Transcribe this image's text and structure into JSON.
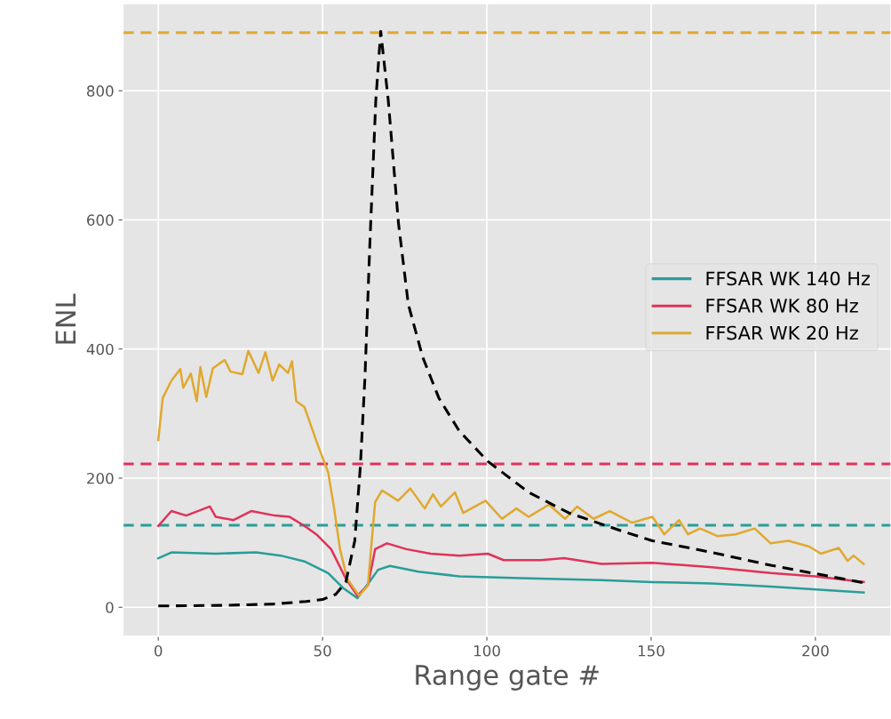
{
  "chart_data": {
    "type": "line",
    "xlabel": "Range gate #",
    "ylabel": "ENL",
    "xlim": [
      -10.75,
      223
    ],
    "ylim": [
      -45,
      935
    ],
    "xticks": [
      0,
      50,
      100,
      150,
      200
    ],
    "yticks": [
      0,
      200,
      400,
      600,
      800
    ],
    "grid": true,
    "legend": "right",
    "line_style": "solid",
    "marker": "none",
    "series": [
      {
        "name": "FFSAR WK 140 Hz",
        "color": "#2a9d98",
        "x": [
          0,
          4,
          17.5,
          29.8,
          37.3,
          44.5,
          51.7,
          56.2,
          60.6,
          64.2,
          66.9,
          70.5,
          79.2,
          91.6,
          110.2,
          135,
          150.4,
          168.5,
          186.4,
          214.7
        ],
        "values": [
          76,
          85,
          83,
          85,
          80,
          71,
          53,
          30,
          14,
          39,
          58,
          64,
          55,
          48,
          45,
          42,
          39,
          37,
          32,
          23
        ]
      },
      {
        "name": "FFSAR WK 80 Hz",
        "color": "#e0325a",
        "x": [
          0,
          4,
          8.5,
          15.7,
          17.5,
          22.9,
          28.3,
          35.5,
          40,
          44.5,
          48.1,
          52.6,
          57.1,
          60.6,
          63.8,
          66,
          69.6,
          75.5,
          82.9,
          91.6,
          100.3,
          105.1,
          116.4,
          123.5,
          134.9,
          150.4,
          168.5,
          186.4,
          199.9,
          214.7
        ],
        "values": [
          126,
          149,
          142,
          156,
          140,
          135,
          149,
          142,
          140,
          126,
          113,
          90,
          44,
          18,
          34,
          90,
          99,
          90,
          83,
          80,
          83,
          73,
          73,
          76,
          67,
          69,
          62,
          53,
          48,
          39
        ]
      },
      {
        "name": "FFSAR WK 20 Hz",
        "color": "#e0a82e",
        "x": [
          0,
          1.35,
          4,
          6.7,
          7.6,
          9.9,
          11.7,
          12.8,
          14.6,
          16.6,
          20.2,
          22,
          25.6,
          27.4,
          30.5,
          32.6,
          34.8,
          36.8,
          39.5,
          40.7,
          42,
          44.5,
          46.7,
          49,
          51.7,
          53.5,
          55.3,
          57.5,
          61.1,
          63.8,
          66,
          68.1,
          73,
          76.7,
          81.1,
          83.6,
          86,
          90.3,
          92.8,
          99.6,
          104.6,
          109,
          112.7,
          118.9,
          123.8,
          127.5,
          132.5,
          137.4,
          144.2,
          150.4,
          154,
          158.5,
          161.2,
          164.9,
          170.3,
          175.7,
          181.5,
          186.4,
          191.8,
          198.1,
          201.7,
          207.1,
          209.8,
          211.6,
          214.7
        ],
        "values": [
          259,
          324,
          351,
          369,
          340,
          362,
          319,
          372,
          326,
          370,
          383,
          365,
          361,
          397,
          363,
          395,
          351,
          376,
          363,
          381,
          319,
          310,
          278,
          245,
          209,
          154,
          90,
          44,
          18,
          34,
          163,
          181,
          165,
          184,
          153,
          175,
          156,
          178,
          146,
          165,
          137,
          153,
          140,
          159,
          137,
          156,
          137,
          149,
          131,
          140,
          113,
          135,
          113,
          122,
          110,
          113,
          122,
          99,
          103,
          94,
          83,
          92,
          72,
          80,
          67
        ]
      },
      {
        "color": "#000000",
        "line_style": "dashed",
        "x": [
          0,
          20,
          35,
          45,
          50,
          54,
          57.1,
          59.8,
          61.5,
          62.9,
          64.4,
          66.2,
          67.7,
          70,
          73.1,
          76.1,
          80.5,
          85.4,
          91.6,
          100.3,
          112.7,
          125,
          141.1,
          150.4,
          168.5,
          186.4,
          200,
          214.7
        ],
        "values": [
          2,
          3,
          5,
          9,
          12,
          20,
          39,
          103,
          218,
          356,
          564,
          785,
          892,
          785,
          595,
          469,
          387,
          324,
          273,
          226,
          178,
          146,
          118,
          103,
          85,
          65,
          52,
          38
        ]
      }
    ],
    "ref_lines": [
      {
        "axis": "y",
        "value": 890,
        "color": "#e0a82e",
        "line_style": "dashed"
      },
      {
        "axis": "y",
        "value": 222,
        "color": "#e0325a",
        "line_style": "dashed"
      },
      {
        "axis": "y",
        "value": 127,
        "color": "#2a9d98",
        "line_style": "dashed"
      }
    ]
  }
}
